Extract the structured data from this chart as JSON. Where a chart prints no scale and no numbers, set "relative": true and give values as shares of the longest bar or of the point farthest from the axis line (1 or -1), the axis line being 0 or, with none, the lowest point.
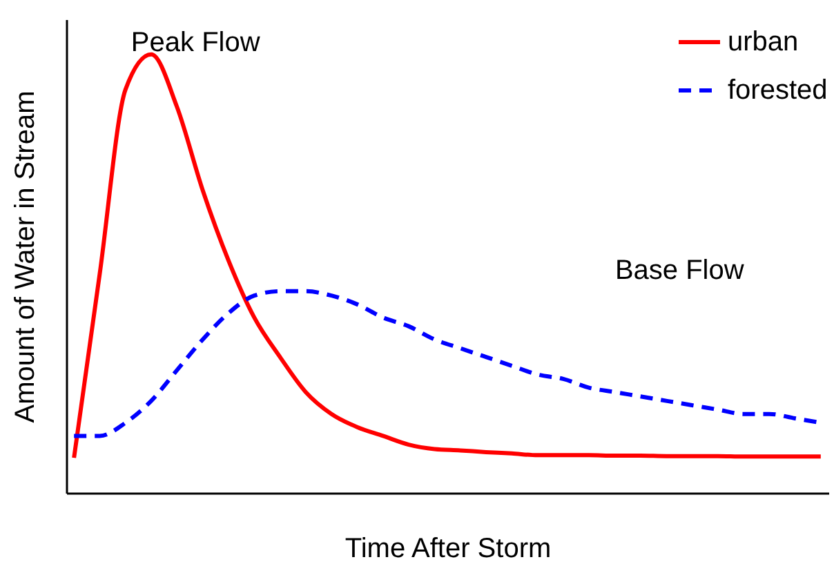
{
  "chart_data": {
    "type": "line",
    "relative": true,
    "xlabel": "Time After Storm",
    "ylabel": "Amount of Water in Stream",
    "legend": "top right",
    "tick_labels": false,
    "grid": false,
    "annotations": [
      "Peak Flow",
      "Base Flow"
    ],
    "categories": [
      null,
      null,
      null,
      null,
      null,
      null,
      null,
      null,
      null,
      null,
      null,
      null,
      null,
      null,
      null,
      null,
      null,
      null,
      null,
      null,
      null,
      null,
      null,
      null,
      null,
      null,
      null,
      null,
      null,
      null
    ],
    "series": [
      {
        "name": "urban",
        "color": "#ff0000",
        "line_style": "solid",
        "values": [
          0.08,
          0.5,
          0.92,
          1,
          0.88,
          0.69,
          0.53,
          0.4,
          0.31,
          0.23,
          0.18,
          0.15,
          0.13,
          0.11,
          0.1,
          0.097,
          0.093,
          0.09,
          0.086,
          0.086,
          0.086,
          0.085,
          0.085,
          0.084,
          0.084,
          0.084,
          0.083,
          0.083,
          0.083,
          0.083
        ]
      },
      {
        "name": "forested",
        "color": "#0000ff",
        "line_style": "dashed",
        "values": [
          0.13,
          0.13,
          0.16,
          0.21,
          0.28,
          0.35,
          0.41,
          0.45,
          0.46,
          0.46,
          0.45,
          0.43,
          0.4,
          0.38,
          0.35,
          0.33,
          0.31,
          0.29,
          0.27,
          0.26,
          0.24,
          0.23,
          0.22,
          0.21,
          0.2,
          0.19,
          0.18,
          0.18,
          0.17,
          0.16
        ]
      }
    ]
  }
}
